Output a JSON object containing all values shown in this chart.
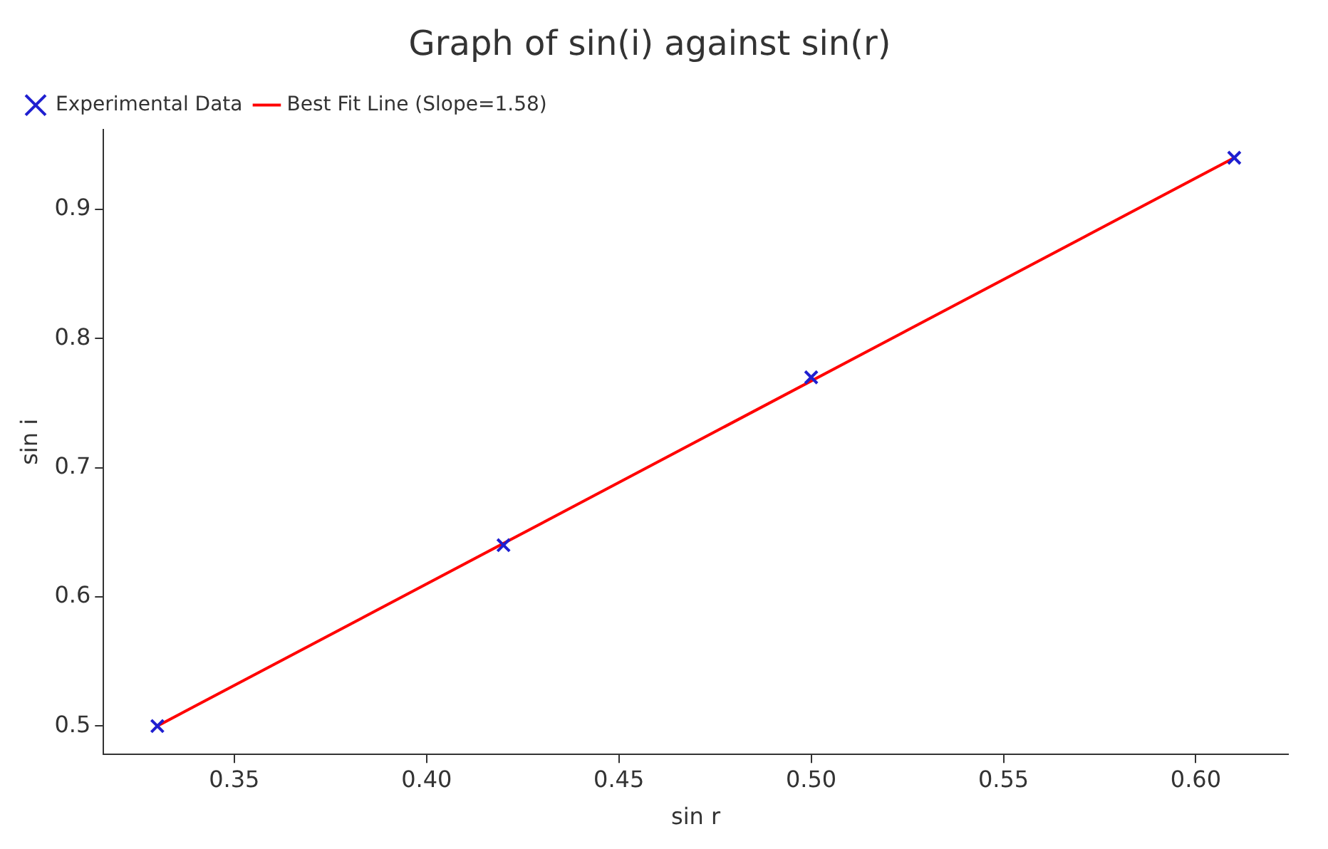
{
  "chart_data": {
    "type": "scatter",
    "title": "Graph of sin(i) against sin(r)",
    "xlabel": "sin r",
    "ylabel": "sin i",
    "series": [
      {
        "name": "Experimental Data",
        "type": "scatter",
        "color": "#1f1fd0",
        "marker": "cross",
        "x": [
          0.33,
          0.42,
          0.5,
          0.61
        ],
        "values": [
          0.5,
          0.64,
          0.77,
          0.94
        ]
      },
      {
        "name": "Best Fit Line (Slope=1.58)",
        "type": "line",
        "color": "#ff0000",
        "marker": "none",
        "x": [
          0.33,
          0.61
        ],
        "values": [
          0.5,
          0.94
        ]
      }
    ],
    "xlim": [
      0.316,
      0.624
    ],
    "ylim": [
      0.478,
      0.962
    ],
    "xticks": [
      {
        "value": 0.35,
        "label": "0.35"
      },
      {
        "value": 0.4,
        "label": "0.40"
      },
      {
        "value": 0.45,
        "label": "0.45"
      },
      {
        "value": 0.5,
        "label": "0.50"
      },
      {
        "value": 0.55,
        "label": "0.55"
      },
      {
        "value": 0.6,
        "label": "0.60"
      }
    ],
    "yticks": [
      0.5,
      0.6,
      0.7,
      0.8,
      0.9
    ],
    "grid": false,
    "legend": "top left"
  }
}
